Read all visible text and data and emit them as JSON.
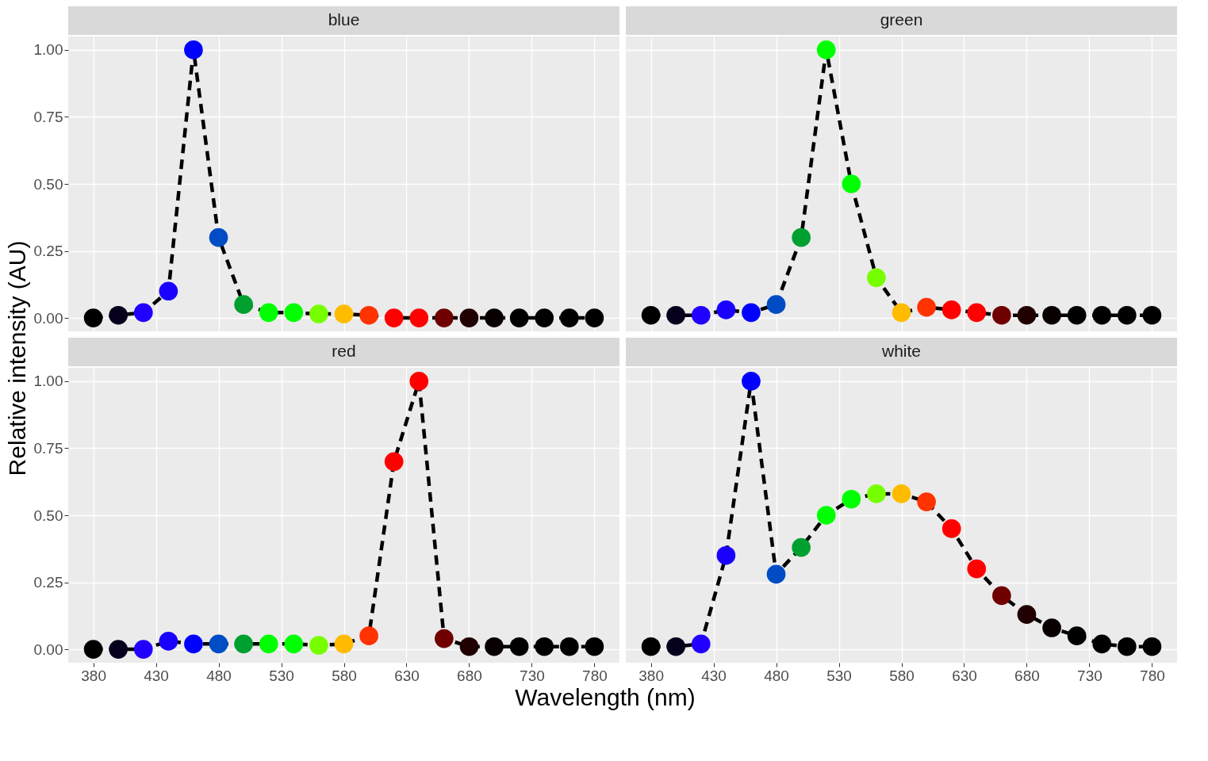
{
  "chart_data": [
    {
      "type": "line",
      "title": "blue",
      "ylabel": "Relative intensity (AU)",
      "x": [
        380,
        400,
        420,
        440,
        460,
        480,
        500,
        520,
        540,
        560,
        580,
        600,
        620,
        640,
        660,
        680,
        700,
        720,
        740,
        760,
        780
      ],
      "series": [
        {
          "color": "#000000",
          "values": [
            0,
            0.01,
            0.02,
            0.1,
            1,
            0.3,
            0.05,
            0.02,
            0.02,
            0.015,
            0.015,
            0.01,
            0,
            0,
            0,
            0,
            0,
            0,
            0,
            0,
            0
          ]
        }
      ],
      "colors": [
        "#000000",
        "#07001c",
        "#2200ff",
        "#1a00ff",
        "#0000ff",
        "#004cc4",
        "#00a030",
        "#00ff00",
        "#00ff00",
        "#77ff00",
        "#ffbb00",
        "#ff3300",
        "#ff0000",
        "#ff0000",
        "#700000",
        "#200000",
        "#080000",
        "#000000",
        "#000000",
        "#000000",
        "#000000"
      ],
      "marker": "circle",
      "line_style": "dashed",
      "grid": true,
      "xlim": [
        360,
        800
      ],
      "ylim": [
        -0.05,
        1.05
      ],
      "xticks": [
        380,
        430,
        480,
        530,
        580,
        630,
        680,
        730,
        780
      ],
      "yticks": [
        {
          "value": 0,
          "label": "0.00"
        },
        {
          "value": 0.25,
          "label": "0.25"
        },
        {
          "value": 0.5,
          "label": "0.50"
        },
        {
          "value": 0.75,
          "label": "0.75"
        },
        {
          "value": 1,
          "label": "1.00"
        }
      ],
      "tick_labels": "y"
    },
    {
      "type": "line",
      "title": "green",
      "x": [
        380,
        400,
        420,
        440,
        460,
        480,
        500,
        520,
        540,
        560,
        580,
        600,
        620,
        640,
        660,
        680,
        700,
        720,
        740,
        760,
        780
      ],
      "series": [
        {
          "color": "#000000",
          "values": [
            0.01,
            0.01,
            0.01,
            0.03,
            0.02,
            0.05,
            0.3,
            1,
            0.5,
            0.15,
            0.02,
            0.04,
            0.03,
            0.02,
            0.01,
            0.01,
            0.01,
            0.01,
            0.01,
            0.01,
            0.01
          ]
        }
      ],
      "colors": [
        "#000000",
        "#07001c",
        "#2200ff",
        "#1a00ff",
        "#0000ff",
        "#004cc4",
        "#00a030",
        "#00ff00",
        "#00ff00",
        "#77ff00",
        "#ffbb00",
        "#ff3300",
        "#ff0000",
        "#ff0000",
        "#700000",
        "#200000",
        "#080000",
        "#000000",
        "#000000",
        "#000000",
        "#000000"
      ],
      "marker": "circle",
      "line_style": "dashed",
      "grid": true,
      "xlim": [
        360,
        800
      ],
      "ylim": [
        -0.05,
        1.05
      ],
      "xticks": [
        380,
        430,
        480,
        530,
        580,
        630,
        680,
        730,
        780
      ],
      "yticks": [
        {
          "value": 0,
          "label": null
        },
        {
          "value": 0.25,
          "label": null
        },
        {
          "value": 0.5,
          "label": null
        },
        {
          "value": 0.75,
          "label": null
        },
        {
          "value": 1,
          "label": null
        }
      ],
      "tick_labels": false
    },
    {
      "type": "line",
      "title": "red",
      "xlabel": "Wavelength (nm)",
      "x": [
        380,
        400,
        420,
        440,
        460,
        480,
        500,
        520,
        540,
        560,
        580,
        600,
        620,
        640,
        660,
        680,
        700,
        720,
        740,
        760,
        780
      ],
      "series": [
        {
          "color": "#000000",
          "values": [
            0,
            0,
            0,
            0.03,
            0.02,
            0.02,
            0.02,
            0.02,
            0.02,
            0.015,
            0.02,
            0.05,
            0.7,
            1,
            0.04,
            0.01,
            0.01,
            0.01,
            0.01,
            0.01,
            0.01
          ]
        }
      ],
      "colors": [
        "#000000",
        "#07001c",
        "#2200ff",
        "#1a00ff",
        "#0000ff",
        "#004cc4",
        "#00a030",
        "#00ff00",
        "#00ff00",
        "#77ff00",
        "#ffbb00",
        "#ff3300",
        "#ff0000",
        "#ff0000",
        "#700000",
        "#200000",
        "#080000",
        "#000000",
        "#000000",
        "#000000",
        "#000000"
      ],
      "marker": "circle",
      "line_style": "dashed",
      "grid": true,
      "xlim": [
        360,
        800
      ],
      "ylim": [
        -0.05,
        1.05
      ],
      "xticks": [
        380,
        430,
        480,
        530,
        580,
        630,
        680,
        730,
        780
      ],
      "yticks": [
        {
          "value": 0,
          "label": "0.00"
        },
        {
          "value": 0.25,
          "label": "0.25"
        },
        {
          "value": 0.5,
          "label": "0.50"
        },
        {
          "value": 0.75,
          "label": "0.75"
        },
        {
          "value": 1,
          "label": "1.00"
        }
      ]
    },
    {
      "type": "line",
      "title": "white",
      "x": [
        380,
        400,
        420,
        440,
        460,
        480,
        500,
        520,
        540,
        560,
        580,
        600,
        620,
        640,
        660,
        680,
        700,
        720,
        740,
        760,
        780
      ],
      "series": [
        {
          "color": "#000000",
          "values": [
            0.01,
            0.01,
            0.02,
            0.35,
            1,
            0.28,
            0.38,
            0.5,
            0.56,
            0.58,
            0.58,
            0.55,
            0.45,
            0.3,
            0.2,
            0.13,
            0.08,
            0.05,
            0.02,
            0.01,
            0.01
          ]
        }
      ],
      "colors": [
        "#000000",
        "#07001c",
        "#2200ff",
        "#1a00ff",
        "#0000ff",
        "#004cc4",
        "#00a030",
        "#00ff00",
        "#00ff00",
        "#77ff00",
        "#ffbb00",
        "#ff3300",
        "#ff0000",
        "#ff0000",
        "#700000",
        "#200000",
        "#080000",
        "#000000",
        "#000000",
        "#000000",
        "#000000"
      ],
      "marker": "circle",
      "line_style": "dashed",
      "grid": true,
      "xlim": [
        360,
        800
      ],
      "ylim": [
        -0.05,
        1.05
      ],
      "xticks": [
        380,
        430,
        480,
        530,
        580,
        630,
        680,
        730,
        780
      ],
      "yticks": [
        {
          "value": 0,
          "label": null
        },
        {
          "value": 0.25,
          "label": null
        },
        {
          "value": 0.5,
          "label": null
        },
        {
          "value": 0.75,
          "label": null
        },
        {
          "value": 1,
          "label": null
        }
      ],
      "tick_labels": "x"
    }
  ]
}
